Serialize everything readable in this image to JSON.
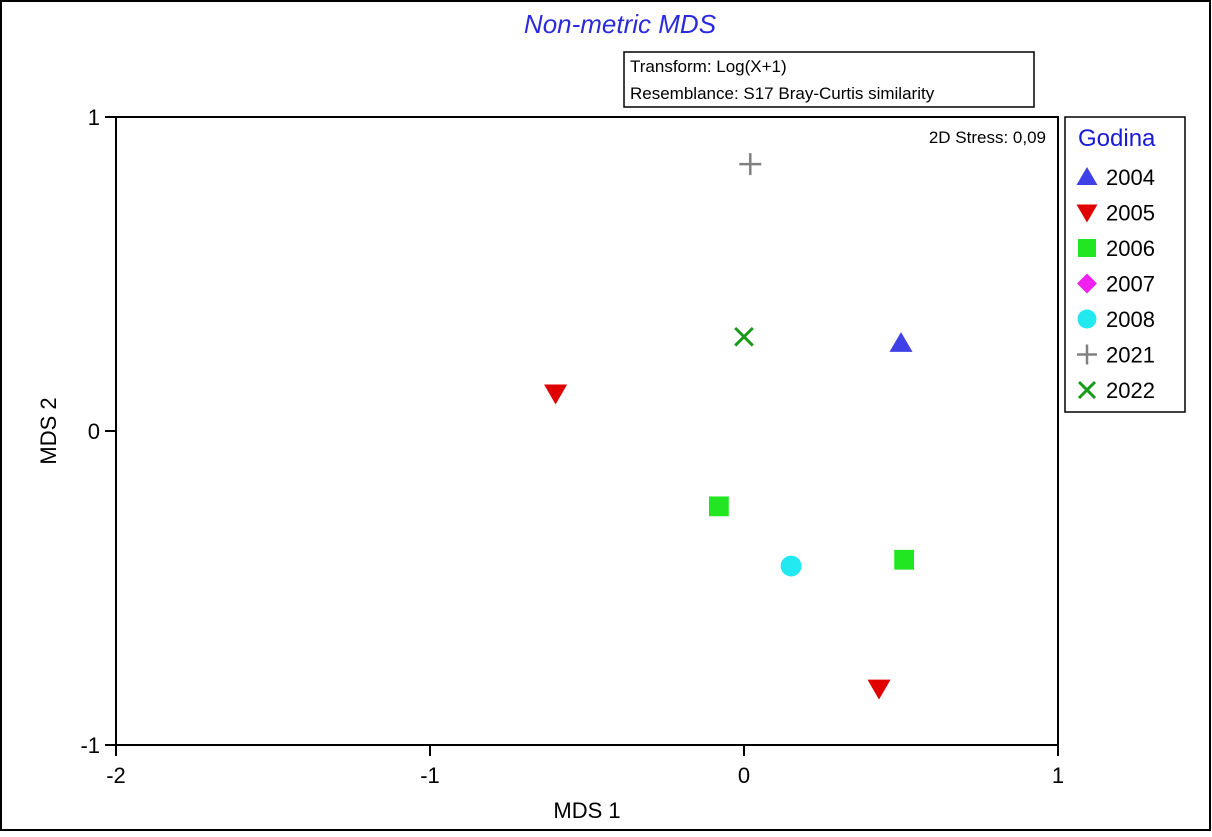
{
  "chart_data": {
    "type": "scatter",
    "title": "Non-metric MDS",
    "xlabel": "MDS 1",
    "ylabel": "MDS 2",
    "xlim": [
      -2,
      1
    ],
    "ylim": [
      -1,
      1
    ],
    "xticks": [
      "-2",
      "-1",
      "0",
      "1"
    ],
    "yticks": [
      "1",
      "0",
      "-1"
    ],
    "grid": false,
    "info_lines": [
      "Transform: Log(X+1)",
      "Resemblance: S17 Bray-Curtis similarity"
    ],
    "stress_label": "2D Stress: 0,09",
    "legend": {
      "title": "Godina",
      "placement": "right",
      "title_color": "#1a1ad6"
    },
    "series": [
      {
        "name": "2004",
        "marker": "triangle-up",
        "color": "#4040e8",
        "points": [
          [
            0.5,
            0.28
          ]
        ]
      },
      {
        "name": "2005",
        "marker": "triangle-down",
        "color": "#e00000",
        "points": [
          [
            -0.6,
            0.12
          ],
          [
            0.43,
            -0.82
          ]
        ]
      },
      {
        "name": "2006",
        "marker": "square",
        "color": "#22e622",
        "points": [
          [
            -0.08,
            -0.24
          ],
          [
            0.51,
            -0.41
          ]
        ]
      },
      {
        "name": "2007",
        "marker": "diamond",
        "color": "#f020f0",
        "points": []
      },
      {
        "name": "2008",
        "marker": "circle",
        "color": "#22e8f0",
        "points": [
          [
            0.15,
            -0.43
          ]
        ]
      },
      {
        "name": "2021",
        "marker": "plus",
        "color": "#808080",
        "points": [
          [
            0.02,
            0.85
          ]
        ]
      },
      {
        "name": "2022",
        "marker": "cross",
        "color": "#1a9a1a",
        "points": [
          [
            0.0,
            0.3
          ]
        ]
      }
    ]
  }
}
